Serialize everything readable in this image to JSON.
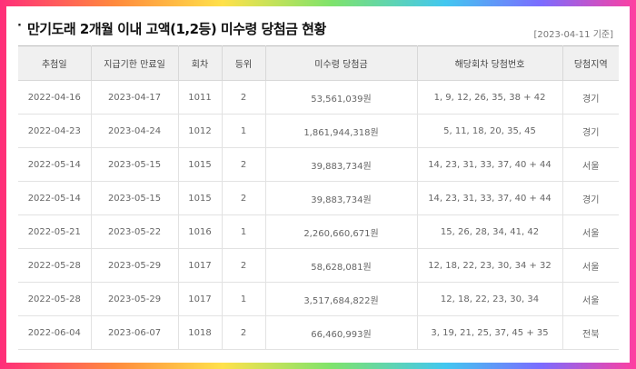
{
  "header": {
    "bullet": "·",
    "title": "만기도래 2개월 이내 고액(1,2등) 미수령 당첨금 현황",
    "as_of": "[2023-04-11 기준]"
  },
  "table": {
    "columns": [
      "추첨일",
      "지급기한 만료일",
      "회차",
      "등위",
      "미수령 당첨금",
      "해당회차 당첨번호",
      "당첨지역"
    ],
    "rows": [
      [
        "2022-04-16",
        "2023-04-17",
        "1011",
        "2",
        "53,561,039원",
        "1, 9, 12, 26, 35, 38 + 42",
        "경기"
      ],
      [
        "2022-04-23",
        "2023-04-24",
        "1012",
        "1",
        "1,861,944,318원",
        "5, 11, 18, 20, 35, 45",
        "경기"
      ],
      [
        "2022-05-14",
        "2023-05-15",
        "1015",
        "2",
        "39,883,734원",
        "14, 23, 31, 33, 37, 40 + 44",
        "서울"
      ],
      [
        "2022-05-14",
        "2023-05-15",
        "1015",
        "2",
        "39,883,734원",
        "14, 23, 31, 33, 37, 40 + 44",
        "경기"
      ],
      [
        "2022-05-21",
        "2023-05-22",
        "1016",
        "1",
        "2,260,660,671원",
        "15, 26, 28, 34, 41, 42",
        "서울"
      ],
      [
        "2022-05-28",
        "2023-05-29",
        "1017",
        "2",
        "58,628,081원",
        "12, 18, 22, 23, 30, 34 + 32",
        "서울"
      ],
      [
        "2022-05-28",
        "2023-05-29",
        "1017",
        "1",
        "3,517,684,822원",
        "12, 18, 22, 23, 30, 34",
        "서울"
      ],
      [
        "2022-06-04",
        "2023-06-07",
        "1018",
        "2",
        "66,460,993원",
        "3, 19, 21, 25, 37, 45 + 35",
        "전북"
      ]
    ]
  }
}
